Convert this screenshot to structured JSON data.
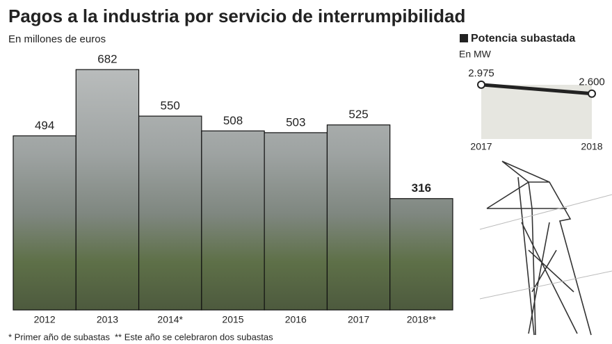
{
  "chart_data": [
    {
      "type": "bar",
      "title": "Pagos a la industria por servicio de interrumpibilidad",
      "subtitle": "En millones  de euros",
      "categories": [
        "2012",
        "2013",
        "2014*",
        "2015",
        "2016",
        "2017",
        "2018**"
      ],
      "values": [
        494,
        682,
        550,
        508,
        503,
        525,
        316
      ],
      "ylim": [
        0,
        700
      ],
      "notes": [
        "* Primer año de subastas",
        "** Este año se celebraron dos subastas"
      ]
    },
    {
      "type": "line",
      "title": "Potencia subastada",
      "subtitle": "En MW",
      "categories": [
        "2017",
        "2018"
      ],
      "values": [
        2975,
        2600
      ],
      "value_labels": [
        "2.975",
        "2.600"
      ],
      "color": "#222222",
      "ylim": [
        700,
        3000
      ]
    }
  ]
}
